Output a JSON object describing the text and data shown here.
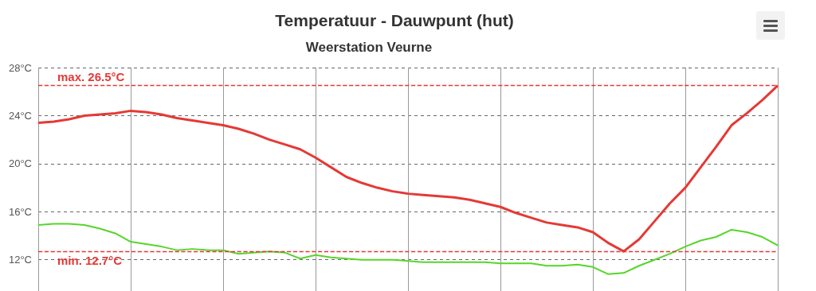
{
  "chart_data": {
    "type": "line",
    "title": "Temperatuur - Dauwpunt (hut)",
    "subtitle": "Weerstation Veurne",
    "categories": [
      null,
      null,
      null,
      null,
      null,
      null,
      null,
      null,
      null,
      null,
      null,
      null,
      null,
      null,
      null,
      null,
      null,
      null,
      null,
      null,
      null,
      null,
      null,
      null,
      null,
      null,
      null,
      null,
      null,
      null,
      null,
      null,
      null,
      null,
      null,
      null,
      null,
      null,
      null,
      null,
      null,
      null,
      null,
      null,
      null,
      null,
      null,
      null,
      null
    ],
    "series": [
      {
        "color": "#e53935",
        "values": [
          23.4,
          23.5,
          23.7,
          24.0,
          24.1,
          24.2,
          24.4,
          24.3,
          24.1,
          23.8,
          23.6,
          23.4,
          23.2,
          22.9,
          22.5,
          22.0,
          21.6,
          21.2,
          20.5,
          19.7,
          18.9,
          18.4,
          18.0,
          17.7,
          17.5,
          17.4,
          17.3,
          17.2,
          17.0,
          16.7,
          16.4,
          15.9,
          15.5,
          15.1,
          14.9,
          14.7,
          14.3,
          13.4,
          12.7,
          13.7,
          15.2,
          16.7,
          18.0,
          19.7,
          21.4,
          23.2,
          24.2,
          25.3,
          26.5
        ]
      },
      {
        "color": "#55d62a",
        "values": [
          14.9,
          15.0,
          15.0,
          14.9,
          14.6,
          14.2,
          13.5,
          13.3,
          13.1,
          12.8,
          12.9,
          12.8,
          12.8,
          12.5,
          12.6,
          12.7,
          12.6,
          12.1,
          12.4,
          12.2,
          12.1,
          12.0,
          12.0,
          12.0,
          11.9,
          11.8,
          11.8,
          11.8,
          11.8,
          11.8,
          11.7,
          11.7,
          11.7,
          11.5,
          11.5,
          11.6,
          11.4,
          10.8,
          10.9,
          11.5,
          12.0,
          12.5,
          13.1,
          13.6,
          13.9,
          14.5,
          14.3,
          13.9,
          13.2
        ]
      }
    ],
    "ylim": [
      9.4,
      28
    ],
    "yticks": [
      {
        "value": 12,
        "label": "12°C"
      },
      {
        "value": 16,
        "label": "16°C"
      },
      {
        "value": 20,
        "label": "20°C"
      },
      {
        "value": 24,
        "label": "24°C"
      },
      {
        "value": 28,
        "label": "28°C"
      }
    ],
    "ref_lines": [
      {
        "axis": "y",
        "value": 26.5,
        "label": "max. 26.5°C",
        "color": "#e53935",
        "line_style": "dashed"
      },
      {
        "axis": "y",
        "value": 12.7,
        "label": "min. 12.7°C",
        "color": "#e53935",
        "line_style": "dashed"
      }
    ],
    "grid": true,
    "tick_labels": "y",
    "marker": "none"
  }
}
